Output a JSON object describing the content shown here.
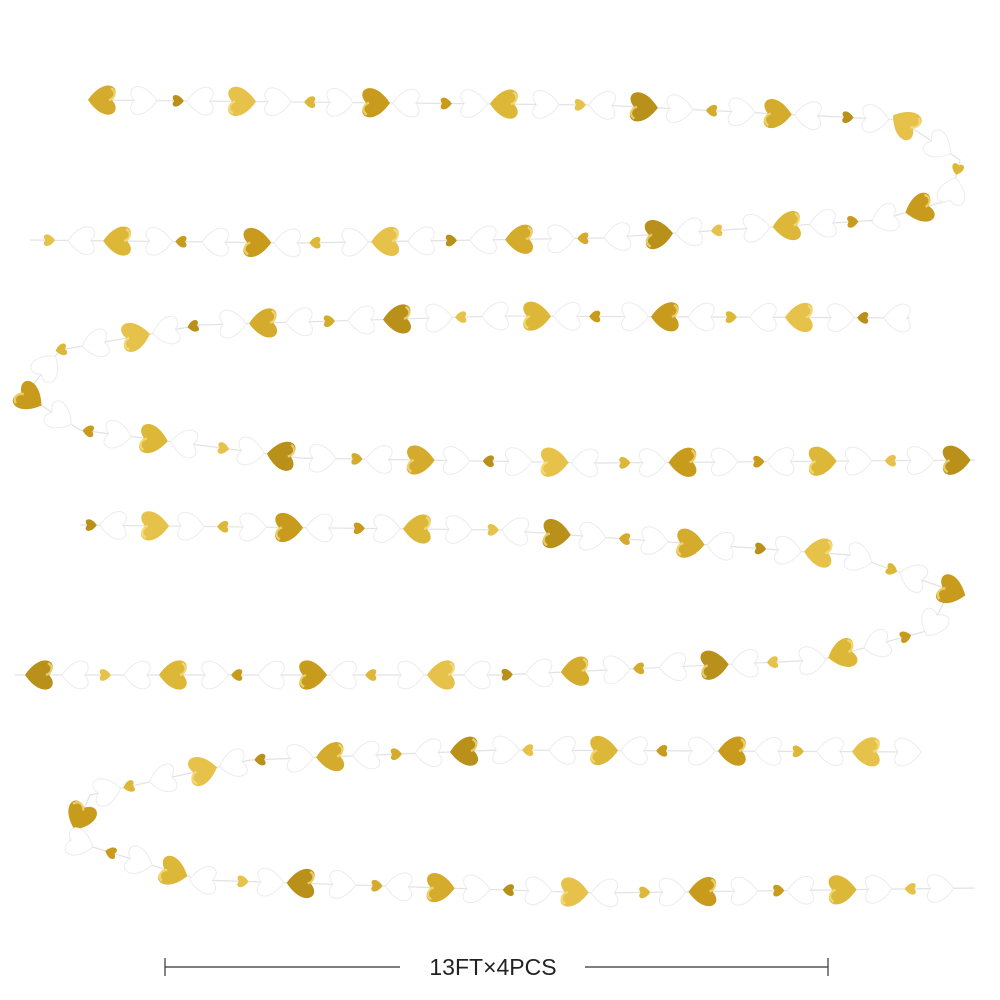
{
  "dimension_label": "13FT×4PCS"
}
